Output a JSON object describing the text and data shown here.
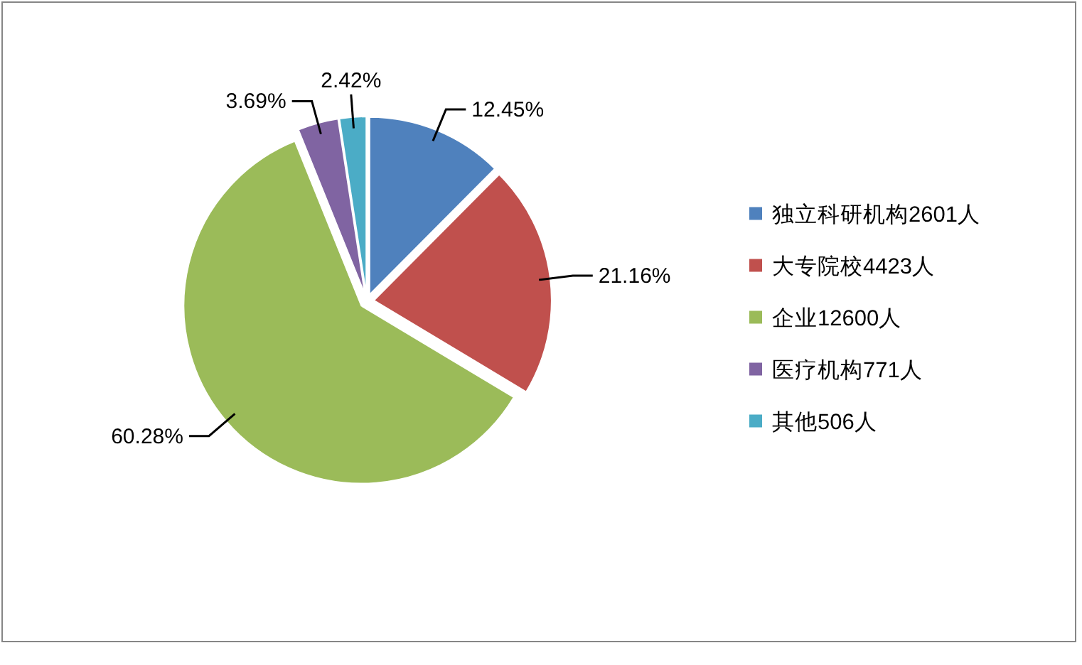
{
  "chart_data": {
    "type": "pie",
    "categories": [
      "独立科研机构2601人",
      "大专院校4423人",
      "企业12600人",
      "医疗机构771人",
      "其他506人"
    ],
    "values": [
      12.45,
      21.16,
      60.28,
      3.69,
      2.42
    ],
    "colors": [
      "#4f81bd",
      "#c0504d",
      "#9bbb59",
      "#8064a2",
      "#4bacc6"
    ],
    "value_labels": [
      "12.45%",
      "21.16%",
      "60.28%",
      "3.69%",
      "2.42%"
    ],
    "legend": "right"
  }
}
